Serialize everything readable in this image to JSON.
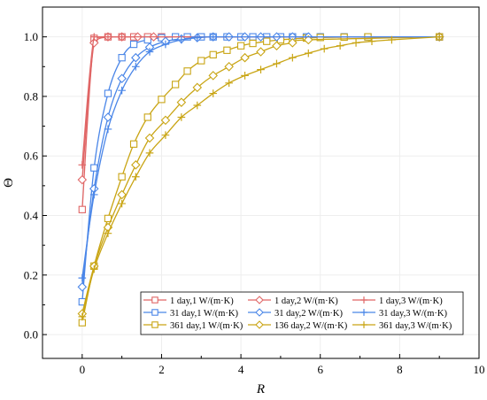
{
  "chart_data": {
    "type": "line",
    "title": "",
    "xlabel": "R",
    "ylabel": "Θ",
    "xlim": [
      -1,
      10
    ],
    "ylim": [
      -0.08,
      1.1
    ],
    "xticks": [
      0,
      2,
      4,
      6,
      8,
      10
    ],
    "yticks": [
      0.0,
      0.2,
      0.4,
      0.6,
      0.8,
      1.0
    ],
    "ytick_labels": [
      "0.0",
      "0.2",
      "0.4",
      "0.6",
      "0.8",
      "1.0"
    ],
    "legend_position": "bottom-right",
    "series": [
      {
        "name": "1      day,1 W/(m·K)",
        "color": "#e06666",
        "marker": "square",
        "x": [
          0,
          0.3,
          0.65,
          1.0,
          1.3,
          1.65,
          2.0,
          9.0
        ],
        "y": [
          0.42,
          0.995,
          1.0,
          1.0,
          1.0,
          1.0,
          1.0,
          1.0
        ]
      },
      {
        "name": "31    day,1 W/(m·K)",
        "color": "#4a86e8",
        "marker": "square",
        "x": [
          0,
          0.3,
          0.65,
          1.0,
          1.3,
          1.65,
          2.0,
          2.35,
          2.65,
          3.0,
          3.3,
          3.65,
          4.0,
          4.3,
          4.65,
          5.0,
          5.3,
          5.65,
          6.0,
          6.6,
          7.2,
          9.0
        ],
        "y": [
          0.11,
          0.56,
          0.81,
          0.93,
          0.975,
          0.99,
          0.997,
          1.0,
          1.0,
          1.0,
          1.0,
          1.0,
          1.0,
          1.0,
          1.0,
          1.0,
          1.0,
          1.0,
          1.0,
          1.0,
          1.0,
          1.0
        ]
      },
      {
        "name": "361  day,1 W/(m·K)",
        "color": "#c9a514",
        "marker": "square",
        "x": [
          0,
          0.3,
          0.65,
          1.0,
          1.3,
          1.65,
          2.0,
          2.35,
          2.65,
          3.0,
          3.3,
          3.65,
          4.0,
          4.3,
          4.65,
          5.0,
          5.3,
          5.65,
          6.0,
          6.6,
          7.2,
          9.0
        ],
        "y": [
          0.04,
          0.23,
          0.39,
          0.53,
          0.64,
          0.73,
          0.79,
          0.84,
          0.885,
          0.92,
          0.94,
          0.955,
          0.97,
          0.978,
          0.985,
          0.99,
          0.993,
          0.996,
          0.998,
          0.999,
          1.0,
          1.0
        ]
      },
      {
        "name": "1      day,2 W/(m·K)",
        "color": "#e06666",
        "marker": "diamond",
        "x": [
          0,
          0.3,
          0.65,
          1.0,
          1.4,
          1.8,
          9.0
        ],
        "y": [
          0.52,
          0.98,
          1.0,
          1.0,
          1.0,
          1.0,
          1.0
        ]
      },
      {
        "name": "31    day,2 W/(m·K)",
        "color": "#4a86e8",
        "marker": "diamond",
        "x": [
          0,
          0.3,
          0.65,
          1.0,
          1.35,
          1.7,
          2.1,
          2.5,
          2.9,
          3.3,
          3.7,
          4.1,
          4.5,
          4.9,
          5.3,
          5.7,
          9.0
        ],
        "y": [
          0.16,
          0.49,
          0.73,
          0.86,
          0.93,
          0.965,
          0.985,
          0.993,
          0.997,
          1.0,
          1.0,
          1.0,
          1.0,
          1.0,
          1.0,
          1.0,
          1.0
        ]
      },
      {
        "name": "136  day,2 W/(m·K)",
        "color": "#c9a514",
        "marker": "diamond",
        "x": [
          0,
          0.3,
          0.65,
          1.0,
          1.35,
          1.7,
          2.1,
          2.5,
          2.9,
          3.3,
          3.7,
          4.1,
          4.5,
          4.9,
          5.3,
          5.7,
          9.0
        ],
        "y": [
          0.07,
          0.23,
          0.36,
          0.47,
          0.57,
          0.66,
          0.72,
          0.78,
          0.83,
          0.87,
          0.9,
          0.93,
          0.95,
          0.97,
          0.98,
          0.99,
          1.0
        ]
      },
      {
        "name": "1      day,3 W/(m·K)",
        "color": "#e06666",
        "marker": "plus",
        "x": [
          0,
          0.3,
          0.65,
          1.0,
          9.0
        ],
        "y": [
          0.57,
          1.0,
          1.0,
          1.0,
          1.0
        ]
      },
      {
        "name": "31    day,3 W/(m·K)",
        "color": "#4a86e8",
        "marker": "plus",
        "x": [
          0,
          0.3,
          0.65,
          1.0,
          1.35,
          1.7,
          2.1,
          2.5,
          2.9,
          3.3,
          9.0
        ],
        "y": [
          0.19,
          0.47,
          0.69,
          0.82,
          0.9,
          0.95,
          0.975,
          0.99,
          0.997,
          1.0,
          1.0
        ]
      },
      {
        "name": "361  day,3 W/(m·K)",
        "color": "#c9a514",
        "marker": "plus",
        "x": [
          0,
          0.3,
          0.65,
          1.0,
          1.35,
          1.7,
          2.1,
          2.5,
          2.9,
          3.3,
          3.7,
          4.1,
          4.5,
          4.9,
          5.3,
          5.7,
          6.1,
          6.5,
          6.9,
          7.3,
          7.8,
          9.0
        ],
        "y": [
          0.06,
          0.22,
          0.34,
          0.44,
          0.53,
          0.61,
          0.67,
          0.73,
          0.77,
          0.81,
          0.845,
          0.87,
          0.89,
          0.91,
          0.93,
          0.945,
          0.96,
          0.97,
          0.98,
          0.985,
          0.99,
          1.0
        ]
      }
    ]
  }
}
